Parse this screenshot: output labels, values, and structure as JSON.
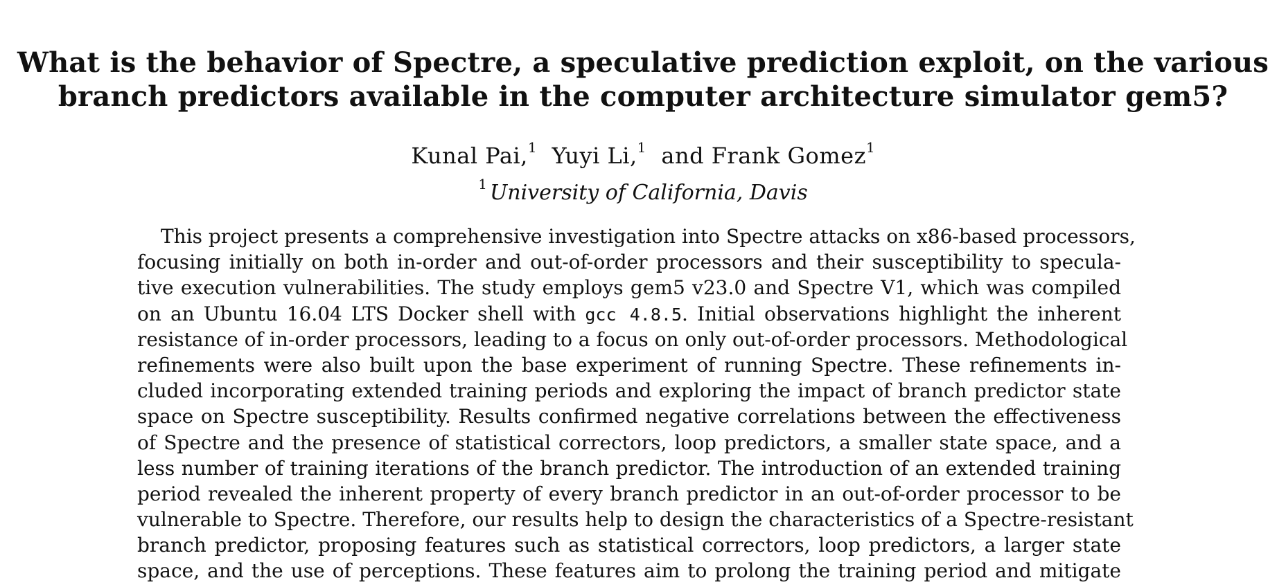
{
  "title": {
    "line1": "What is the behavior of Spectre, a speculative prediction exploit, on the various",
    "line2": "branch predictors available in the computer architecture simulator gem5?"
  },
  "authors": [
    {
      "name": "Kunal Pai,",
      "affiliation_mark": "1"
    },
    {
      "name": "Yuyi Li,",
      "affiliation_mark": "1"
    },
    {
      "name": "and Frank Gomez",
      "affiliation_mark": "1"
    }
  ],
  "affiliation": {
    "mark": "1",
    "name": "University of California, Davis"
  },
  "abstract": {
    "lines": [
      "This project presents a comprehensive investigation into Spectre attacks on x86-based processors,",
      "focusing initially on both in-order and out-of-order processors and their susceptibility to specula-",
      "tive execution vulnerabilities. The study employs gem5 v23.0 and Spectre V1, which was compiled",
      "on an Ubuntu 16.04 LTS Docker shell with",
      "gcc 4.8.5",
      ". Initial observations highlight the inherent",
      "resistance of in-order processors, leading to a focus on only out-of-order processors. Methodological",
      "refinements were also built upon the base experiment of running Spectre.  These refinements in-",
      "cluded incorporating extended training periods and exploring the impact of branch predictor state",
      "space on Spectre susceptibility.  Results confirmed negative correlations between the effectiveness",
      "of Spectre and the presence of statistical correctors, loop predictors, a smaller state space, and a",
      "less number of training iterations of the branch predictor. The introduction of an extended training",
      "period revealed the inherent property of every branch predictor in an out-of-order processor to be",
      "vulnerable to Spectre. Therefore, our results help to design the characteristics of a Spectre-resistant",
      "branch predictor, proposing features such as statistical correctors, loop predictors, a larger state",
      "space, and the use of perceptions. These features aim to prolong the training period and mitigate"
    ]
  }
}
